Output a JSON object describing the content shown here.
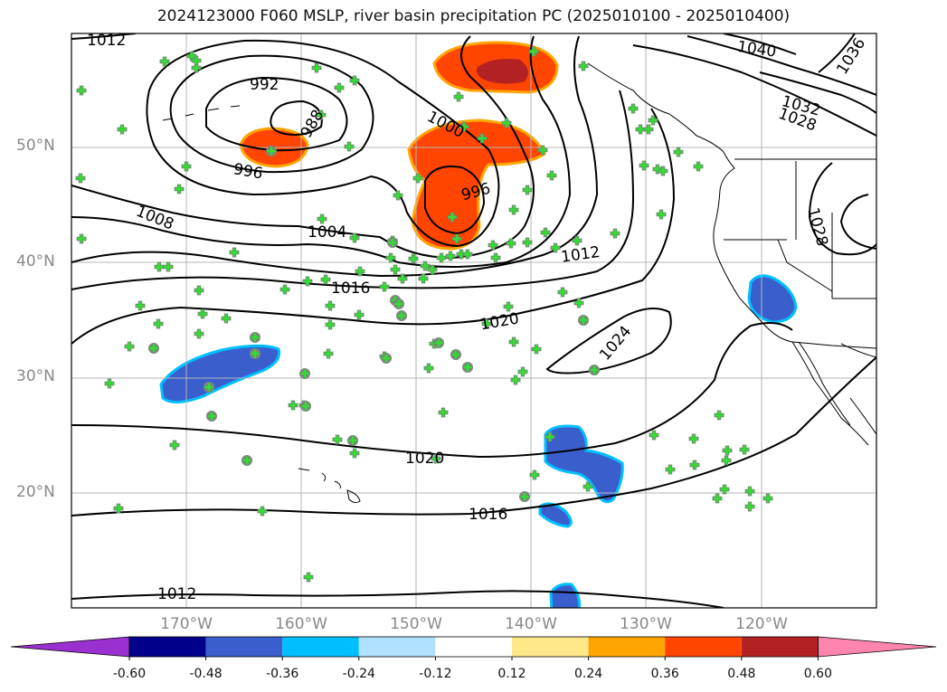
{
  "title": "2024123000 F060 MSLP, river basin precipitation PC (2025010100 - 2025010400)",
  "lat_labels": [
    "50°N",
    "40°N",
    "30°N",
    "20°N"
  ],
  "lon_labels": [
    "170°W",
    "160°W",
    "150°W",
    "140°W",
    "130°W",
    "120°W"
  ],
  "contour_labels": [
    "1012",
    "992",
    "988",
    "996",
    "1000",
    "996",
    "1008",
    "1004",
    "1016",
    "1020",
    "1024",
    "1012",
    "1040",
    "1036",
    "1032",
    "1028",
    "1028",
    "1020",
    "1016",
    "1012"
  ],
  "colorbar": {
    "ticks": [
      "-0.60",
      "-0.48",
      "-0.36",
      "-0.24",
      "-0.12",
      "0.12",
      "0.24",
      "0.36",
      "0.48",
      "0.60"
    ],
    "colors": [
      "#9b30d0",
      "#00008b",
      "#3a5fcd",
      "#00bfff",
      "#b0e2ff",
      "#ffffff",
      "#ffe88a",
      "#ffa500",
      "#ff4500",
      "#b22222",
      "#ff85b0"
    ]
  },
  "colors": {
    "positive": "#ff4500",
    "positive_core": "#b22222",
    "positive_edge": "#ffa500",
    "negative": "#3a5fcd",
    "negative_edge": "#00bfff",
    "marker_fill": "#33dd33",
    "marker_ring": "#888888"
  }
}
